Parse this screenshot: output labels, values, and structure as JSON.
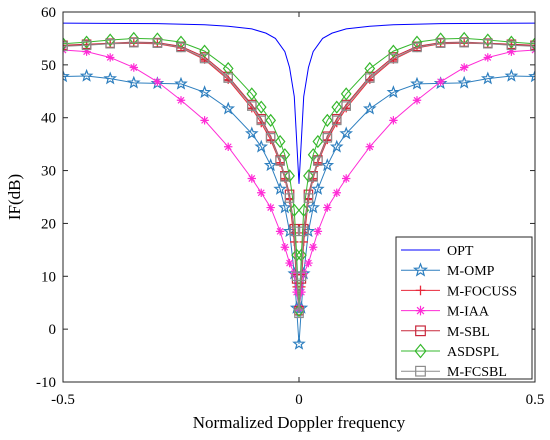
{
  "chart_data": {
    "type": "line",
    "title": "",
    "xlabel": "Normalized Doppler frequency",
    "ylabel": "IF(dB)",
    "xlim": [
      -0.5,
      0.5
    ],
    "ylim": [
      -10,
      60
    ],
    "xticks": [
      -0.5,
      0,
      0.5
    ],
    "xtick_labels": [
      "-0.5",
      "0",
      "0.5"
    ],
    "yticks": [
      -10,
      0,
      10,
      20,
      30,
      40,
      50,
      60
    ],
    "ytick_labels": [
      "-10",
      "0",
      "10",
      "20",
      "30",
      "40",
      "50",
      "60"
    ],
    "grid": false,
    "legend_position": "bottom-right",
    "series": [
      {
        "name": "OPT",
        "color": "#0000ff",
        "marker": "none",
        "x": [
          -0.5,
          -0.3,
          -0.2,
          -0.15,
          -0.1,
          -0.07,
          -0.05,
          -0.03,
          -0.02,
          -0.01,
          0,
          0.01,
          0.02,
          0.03,
          0.05,
          0.07,
          0.1,
          0.15,
          0.2,
          0.3,
          0.5
        ],
        "y": [
          57.9,
          57.8,
          57.6,
          57.3,
          56.8,
          56.0,
          55.0,
          52.5,
          49.5,
          44.0,
          27.5,
          44.0,
          49.5,
          52.5,
          55.0,
          56.0,
          56.8,
          57.3,
          57.6,
          57.8,
          57.9
        ]
      },
      {
        "name": "M-OMP",
        "color": "#2e7fbf",
        "marker": "star",
        "x": [
          -0.5,
          -0.45,
          -0.4,
          -0.35,
          -0.3,
          -0.25,
          -0.2,
          -0.15,
          -0.1,
          -0.08,
          -0.06,
          -0.04,
          -0.03,
          -0.02,
          -0.01,
          -0.005,
          0,
          0.005,
          0.01,
          0.02,
          0.03,
          0.04,
          0.06,
          0.08,
          0.1,
          0.15,
          0.2,
          0.25,
          0.3,
          0.35,
          0.4,
          0.45,
          0.5
        ],
        "y": [
          47.8,
          47.9,
          47.4,
          46.6,
          46.5,
          46.4,
          44.8,
          41.7,
          37.0,
          34.5,
          31.0,
          26.5,
          23.0,
          18.5,
          10.5,
          4.0,
          -2.8,
          4.0,
          10.5,
          18.5,
          23.0,
          26.5,
          31.0,
          34.5,
          37.0,
          41.7,
          44.8,
          46.4,
          46.5,
          46.6,
          47.4,
          47.9,
          47.8
        ]
      },
      {
        "name": "M-FOCUSS",
        "color": "#e8283a",
        "marker": "plus",
        "x": [
          -0.5,
          -0.45,
          -0.4,
          -0.35,
          -0.3,
          -0.25,
          -0.2,
          -0.15,
          -0.1,
          -0.08,
          -0.06,
          -0.04,
          -0.03,
          -0.02,
          -0.01,
          -0.005,
          0,
          0.005,
          0.01,
          0.02,
          0.03,
          0.04,
          0.06,
          0.08,
          0.1,
          0.15,
          0.2,
          0.25,
          0.3,
          0.35,
          0.4,
          0.45,
          0.5
        ],
        "y": [
          53.6,
          53.8,
          54.0,
          54.1,
          54.0,
          53.2,
          51.0,
          47.2,
          41.8,
          39.0,
          35.8,
          31.5,
          28.5,
          24.5,
          16.5,
          8.0,
          4.0,
          8.0,
          16.5,
          24.5,
          28.5,
          31.5,
          35.8,
          39.0,
          41.8,
          47.2,
          51.0,
          53.2,
          54.0,
          54.1,
          54.0,
          53.8,
          53.6
        ]
      },
      {
        "name": "M-IAA",
        "color": "#ff2bd6",
        "marker": "asterisk",
        "x": [
          -0.5,
          -0.45,
          -0.4,
          -0.35,
          -0.3,
          -0.25,
          -0.2,
          -0.15,
          -0.1,
          -0.08,
          -0.06,
          -0.04,
          -0.03,
          -0.02,
          -0.01,
          -0.005,
          0,
          0.005,
          0.01,
          0.02,
          0.03,
          0.04,
          0.06,
          0.08,
          0.1,
          0.15,
          0.2,
          0.25,
          0.3,
          0.35,
          0.4,
          0.45,
          0.5
        ],
        "y": [
          52.8,
          52.5,
          51.4,
          49.5,
          46.8,
          43.3,
          39.5,
          34.5,
          28.5,
          25.8,
          23.0,
          18.5,
          15.5,
          12.5,
          10.5,
          7.0,
          4.0,
          7.0,
          10.5,
          12.5,
          15.5,
          18.5,
          23.0,
          25.8,
          28.5,
          34.5,
          39.5,
          43.3,
          46.8,
          49.5,
          51.4,
          52.5,
          52.8
        ]
      },
      {
        "name": "M-SBL",
        "color": "#c8283c",
        "marker": "square",
        "x": [
          -0.5,
          -0.45,
          -0.4,
          -0.35,
          -0.3,
          -0.25,
          -0.2,
          -0.15,
          -0.1,
          -0.08,
          -0.06,
          -0.04,
          -0.03,
          -0.02,
          -0.01,
          -0.005,
          0,
          0.005,
          0.01,
          0.02,
          0.03,
          0.04,
          0.06,
          0.08,
          0.1,
          0.15,
          0.2,
          0.25,
          0.3,
          0.35,
          0.4,
          0.45,
          0.5
        ],
        "y": [
          53.7,
          53.9,
          54.1,
          54.3,
          54.2,
          53.5,
          51.5,
          47.8,
          42.5,
          39.8,
          36.5,
          32.0,
          29.0,
          25.5,
          19.0,
          9.5,
          3.5,
          9.5,
          19.0,
          25.5,
          29.0,
          32.0,
          36.5,
          39.8,
          42.5,
          47.8,
          51.5,
          53.5,
          54.2,
          54.3,
          54.1,
          53.9,
          53.7
        ]
      },
      {
        "name": "ASDSPL",
        "color": "#36b82d",
        "marker": "diamond",
        "x": [
          -0.5,
          -0.45,
          -0.4,
          -0.35,
          -0.3,
          -0.25,
          -0.2,
          -0.15,
          -0.1,
          -0.08,
          -0.06,
          -0.04,
          -0.03,
          -0.02,
          -0.01,
          -0.005,
          0,
          0.005,
          0.01,
          0.02,
          0.03,
          0.04,
          0.06,
          0.08,
          0.1,
          0.15,
          0.2,
          0.25,
          0.3,
          0.35,
          0.4,
          0.45,
          0.5
        ],
        "y": [
          54.0,
          54.3,
          54.7,
          55.0,
          54.9,
          54.3,
          52.6,
          49.3,
          44.5,
          42.0,
          39.5,
          35.5,
          33.0,
          29.0,
          22.5,
          14.0,
          3.5,
          14.0,
          22.5,
          29.0,
          33.0,
          35.5,
          39.5,
          42.0,
          44.5,
          49.3,
          52.6,
          54.3,
          54.9,
          55.0,
          54.7,
          54.3,
          54.0
        ]
      },
      {
        "name": "M-FCSBL",
        "color": "#8c8c8c",
        "marker": "square",
        "x": [
          -0.5,
          -0.45,
          -0.4,
          -0.35,
          -0.3,
          -0.25,
          -0.2,
          -0.15,
          -0.1,
          -0.08,
          -0.06,
          -0.04,
          -0.03,
          -0.02,
          -0.01,
          -0.005,
          0,
          0.005,
          0.01,
          0.02,
          0.03,
          0.04,
          0.06,
          0.08,
          0.1,
          0.15,
          0.2,
          0.25,
          0.3,
          0.35,
          0.4,
          0.45,
          0.5
        ],
        "y": [
          53.5,
          53.7,
          54.0,
          54.2,
          54.1,
          53.3,
          51.2,
          47.5,
          42.2,
          39.5,
          36.2,
          31.8,
          28.8,
          24.8,
          18.5,
          10.0,
          3.0,
          10.0,
          18.5,
          24.8,
          28.8,
          31.8,
          36.2,
          39.5,
          42.2,
          47.5,
          51.2,
          53.3,
          54.1,
          54.2,
          54.0,
          53.7,
          53.5
        ]
      }
    ]
  }
}
